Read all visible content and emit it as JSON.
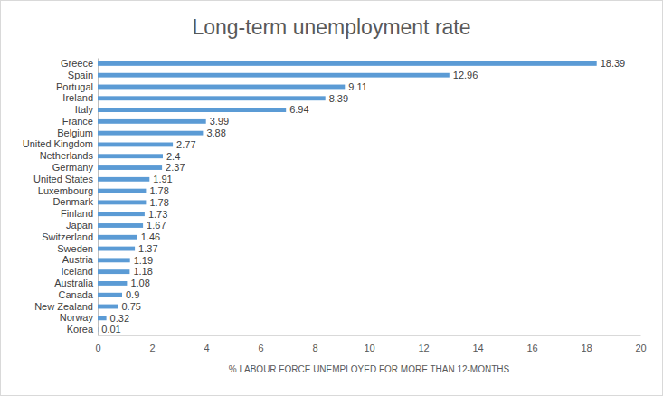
{
  "chart_data": {
    "type": "bar",
    "orientation": "horizontal",
    "title": "Long-term unemployment rate",
    "x_label": "% LABOUR FORCE UNEMPLOYED FOR MORE THAN 12-MONTHS",
    "categories": [
      "Greece",
      "Spain",
      "Portugal",
      "Ireland",
      "Italy",
      "France",
      "Belgium",
      "United Kingdom",
      "Netherlands",
      "Germany",
      "United States",
      "Luxembourg",
      "Denmark",
      "Finland",
      "Japan",
      "Switzerland",
      "Sweden",
      "Austria",
      "Iceland",
      "Australia",
      "Canada",
      "New Zealand",
      "Norway",
      "Korea"
    ],
    "values": [
      18.39,
      12.96,
      9.11,
      8.39,
      6.94,
      3.99,
      3.88,
      2.77,
      2.4,
      2.37,
      1.91,
      1.78,
      1.78,
      1.73,
      1.67,
      1.46,
      1.37,
      1.19,
      1.18,
      1.08,
      0.9,
      0.75,
      0.32,
      0.01
    ],
    "color": "#5b9bd5",
    "xlim": [
      0,
      20
    ],
    "xticks": [
      0,
      2,
      4,
      6,
      8,
      10,
      12,
      14,
      16,
      18,
      20
    ],
    "grid": false,
    "data_labels": true
  }
}
